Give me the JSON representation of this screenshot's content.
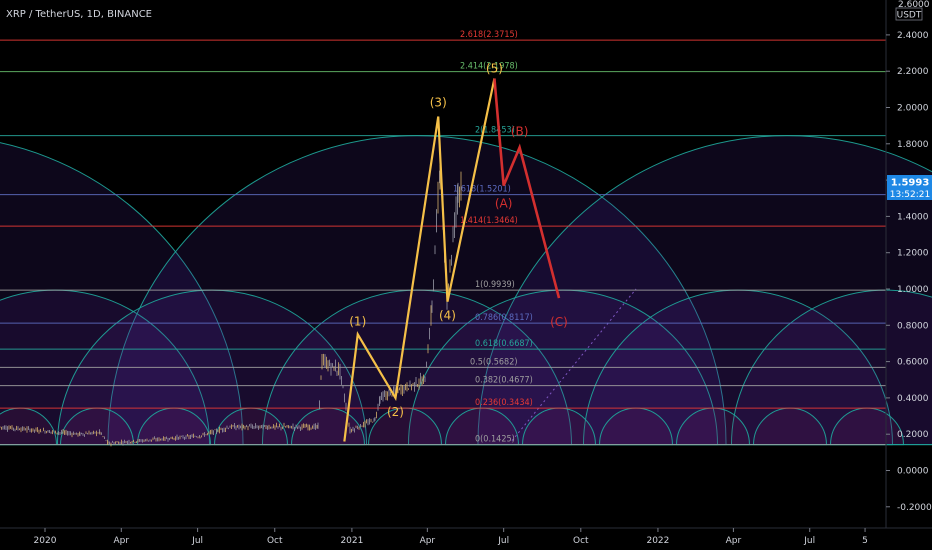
{
  "header": {
    "title": "XRP / TetherUS, 1D, BINANCE"
  },
  "price_badge": {
    "price": "1.5993",
    "countdown": "13:52:21"
  },
  "axis": {
    "currency": "USDT",
    "top_label": "2.6000"
  },
  "colors": {
    "background": "#000000",
    "fib_red": "#e53935",
    "fib_green": "#66bb6a",
    "fib_teal": "#26a69a",
    "fib_gray": "#9e9e9e",
    "fib_blue": "#5c6bc0",
    "wave_yellow": "#f5c048",
    "wave_red": "#d32f2f",
    "arc_stroke": "#1fa89c",
    "badge": "#1e88e5"
  },
  "chart_data": {
    "type": "line",
    "symbol": "XRP / TetherUS",
    "interval": "1D",
    "exchange": "BINANCE",
    "last_price": 1.5993,
    "y_axis": {
      "ylim": [
        -0.28,
        2.6
      ],
      "ticks": [
        -0.2,
        0.0,
        0.2,
        0.4,
        0.6,
        0.8,
        1.0,
        1.2,
        1.4,
        1.6,
        1.8,
        2.0,
        2.2,
        2.4
      ],
      "tick_labels": [
        "-0.2000",
        "0.0000",
        "0.2000",
        "0.4000",
        "0.6000",
        "0.8000",
        "1.0000",
        "1.2000",
        "1.4000",
        "1.6000",
        "1.8000",
        "2.0000",
        "2.2000",
        "2.4000"
      ]
    },
    "x_axis": {
      "tick_labels": [
        "2020",
        "Apr",
        "Jul",
        "Oct",
        "2021",
        "Apr",
        "Jul",
        "Oct",
        "2022",
        "Apr",
        "Jul",
        "5"
      ]
    },
    "fib_levels": [
      {
        "ratio": "0",
        "price": 0.1425,
        "label": "0(0.1425)",
        "color": "gray"
      },
      {
        "ratio": "0.236",
        "price": 0.3434,
        "label": "0.236(0.3434)",
        "color": "red"
      },
      {
        "ratio": "0.382",
        "price": 0.4677,
        "label": "0.382(0.4677)",
        "color": "gray"
      },
      {
        "ratio": "0.5",
        "price": 0.5682,
        "label": "0.5(0.5682)",
        "color": "gray"
      },
      {
        "ratio": "0.618",
        "price": 0.6687,
        "label": "0.618(0.6687)",
        "color": "teal"
      },
      {
        "ratio": "0.786",
        "price": 0.8117,
        "label": "0.786(0.8117)",
        "color": "blue"
      },
      {
        "ratio": "1",
        "price": 0.9939,
        "label": "1(0.9939)",
        "color": "gray"
      },
      {
        "ratio": "1.414",
        "price": 1.3464,
        "label": "1.414(1.3464)",
        "color": "red"
      },
      {
        "ratio": "1.618",
        "price": 1.5201,
        "label": "1.618(1.5201)",
        "color": "blue"
      },
      {
        "ratio": "2",
        "price": 1.8453,
        "label": "2(1.8453)",
        "color": "teal"
      },
      {
        "ratio": "2.414",
        "price": 2.1978,
        "label": "2.414(2.1978)",
        "color": "green"
      },
      {
        "ratio": "2.618",
        "price": 2.3715,
        "label": "2.618(2.3715)",
        "color": "red"
      }
    ],
    "elliott_waves": [
      {
        "label": "(1)",
        "date": "2021-01-08",
        "price": 0.75
      },
      {
        "label": "(2)",
        "date": "2021-02-22",
        "price": 0.4
      },
      {
        "label": "(3)",
        "date": "2021-04-14",
        "price": 1.95
      },
      {
        "label": "(4)",
        "date": "2021-04-25",
        "price": 0.93
      },
      {
        "label": "(5)",
        "date": "2021-06-20",
        "price": 2.16
      }
    ],
    "correction_waves": [
      {
        "label": "(A)",
        "date": "2021-07-01",
        "price": 1.57
      },
      {
        "label": "(B)",
        "date": "2021-07-20",
        "price": 1.78
      },
      {
        "label": "(C)",
        "date": "2021-09-05",
        "price": 0.95
      }
    ]
  }
}
